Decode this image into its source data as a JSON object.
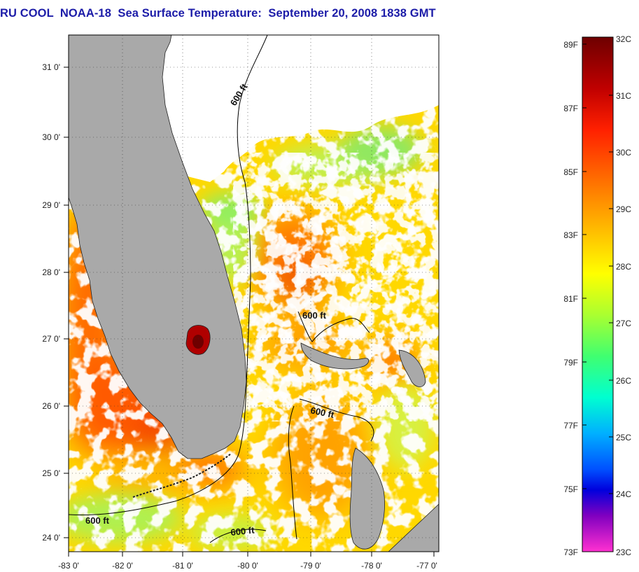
{
  "title": "RU COOL  NOAA-18  Sea Surface Temperature:  September 20, 2008 1838 GMT",
  "map": {
    "lon_ticks": [
      "-83 0'",
      "-82 0'",
      "-81 0'",
      "-80 0'",
      "-79 0'",
      "-78 0'",
      "-77 0'"
    ],
    "lat_ticks": [
      "31 0'",
      "30 0'",
      "29 0'",
      "28 0'",
      "27 0'",
      "26 0'",
      "25 0'",
      "24 0'"
    ],
    "land_color": "#a9a9a9",
    "cloud_color": "#ffffff",
    "contours": [
      {
        "label": "600 ft"
      },
      {
        "label": "600 ft"
      },
      {
        "label": "600 ft"
      },
      {
        "label": "600 ft"
      },
      {
        "label": "600 ft"
      }
    ]
  },
  "colorbar": {
    "fahrenheit": [
      "89F",
      "87F",
      "85F",
      "83F",
      "81F",
      "79F",
      "77F",
      "75F",
      "73F"
    ],
    "celsius": [
      "32C",
      "31C",
      "30C",
      "29C",
      "28C",
      "27C",
      "26C",
      "25C",
      "24C",
      "23C"
    ],
    "colors": [
      "#6e0000",
      "#c00000",
      "#ff2000",
      "#ff7000",
      "#ffc000",
      "#ffff00",
      "#aaff30",
      "#40ff70",
      "#00ffd0",
      "#00b0ff",
      "#0050ff",
      "#0000dd",
      "#8000c0",
      "#ff30d0"
    ]
  }
}
